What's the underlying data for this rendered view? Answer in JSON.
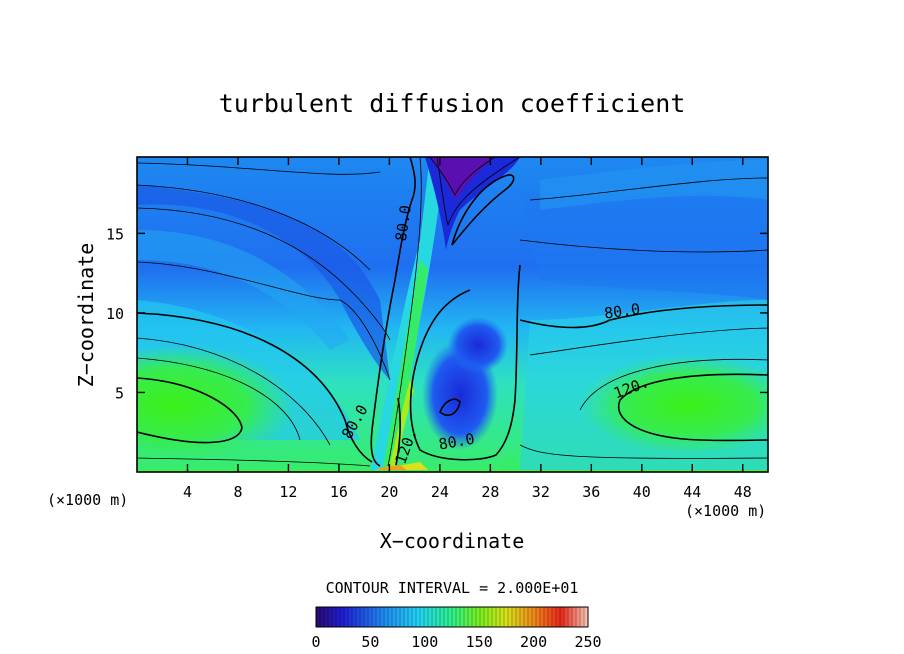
{
  "chart_data": {
    "type": "heatmap",
    "title": "turbulent diffusion coefficient",
    "xlabel": "X−coordinate",
    "ylabel": "Z−coordinate",
    "x_unit": "(×1000 m)",
    "z_unit": "(×1000 m)",
    "xlim": [
      0,
      50
    ],
    "ylim": [
      0,
      19.8
    ],
    "x_ticks": [
      4,
      8,
      12,
      16,
      20,
      24,
      28,
      32,
      36,
      40,
      44,
      48
    ],
    "y_ticks": [
      5,
      10,
      15
    ],
    "contour_interval_text": "CONTOUR INTERVAL = 2.000E+01",
    "contour_interval": 20,
    "contour_labels": [
      {
        "text": "80.0",
        "x": 21.5,
        "z": 15.6,
        "rotate": -82
      },
      {
        "text": "80.0",
        "x": 38.5,
        "z": 9.8,
        "rotate": -8
      },
      {
        "text": "120.",
        "x": 39.3,
        "z": 5.0,
        "rotate": -20
      },
      {
        "text": "80.0",
        "x": 17.6,
        "z": 3.0,
        "rotate": -60
      },
      {
        "text": "80.0",
        "x": 25.4,
        "z": 1.6,
        "rotate": -10
      },
      {
        "text": "120.",
        "x": 21.7,
        "z": 1.5,
        "rotate": -70
      }
    ],
    "colorbar": {
      "min": 0,
      "max": 250,
      "labels": [
        "0",
        "50",
        "100",
        "150",
        "200",
        "250"
      ],
      "colors": [
        "#2a0a6e",
        "#1f1fd6",
        "#1f8bf0",
        "#22d4f4",
        "#2ef08a",
        "#78f01e",
        "#d8e21a",
        "#f08a1a",
        "#e8281a",
        "#f6c8b8"
      ]
    },
    "field_colors": {
      "min_purple": "#5a10b0",
      "deep_blue": "#1a2ad8",
      "blue": "#1e6ef0",
      "sky": "#24b4f4",
      "cyan": "#26dcef",
      "teal": "#2ee6c4",
      "green": "#36ec66",
      "lime": "#6cf018",
      "yellow": "#e8e81a",
      "orange": "#f0a01a"
    }
  }
}
